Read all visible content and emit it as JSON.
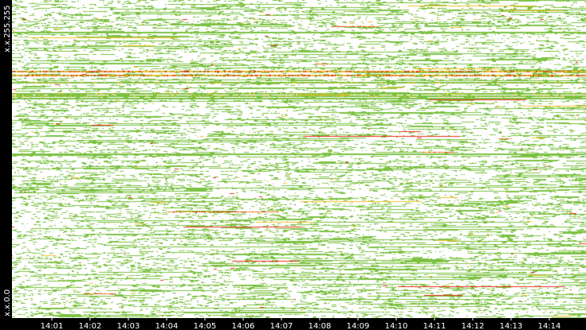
{
  "chart_data": {
    "type": "heatmap",
    "title": "",
    "xlabel": "",
    "ylabel": "",
    "y_axis_labels": {
      "top": "x.x.255.255",
      "bottom": "x.x.0.0"
    },
    "x_ticks": [
      "14:01",
      "14:02",
      "14:03",
      "14:04",
      "14:05",
      "14:06",
      "14:07",
      "14:08",
      "14:09",
      "14:10",
      "14:11",
      "14:12",
      "14:13",
      "14:14"
    ],
    "x_range": [
      "14:00:17",
      "14:14:50"
    ],
    "color_scale": {
      "low": "#7cc142",
      "mid": "#f2c12e",
      "high": "#e8301c",
      "empty": "#ffffff"
    },
    "prominent_rows": [
      {
        "y_fraction_from_top": 0.222,
        "intensity": "high"
      },
      {
        "y_fraction_from_top": 0.235,
        "intensity": "high"
      },
      {
        "y_fraction_from_top": 0.258,
        "intensity": "medium"
      },
      {
        "y_fraction_from_top": 0.292,
        "intensity": "medium"
      },
      {
        "y_fraction_from_top": 0.3,
        "intensity": "medium"
      },
      {
        "y_fraction_from_top": 0.308,
        "intensity": "low"
      },
      {
        "y_fraction_from_top": 0.482,
        "intensity": "low"
      },
      {
        "y_fraction_from_top": 0.1,
        "intensity": "low"
      }
    ],
    "legend": "none",
    "grid": false
  }
}
